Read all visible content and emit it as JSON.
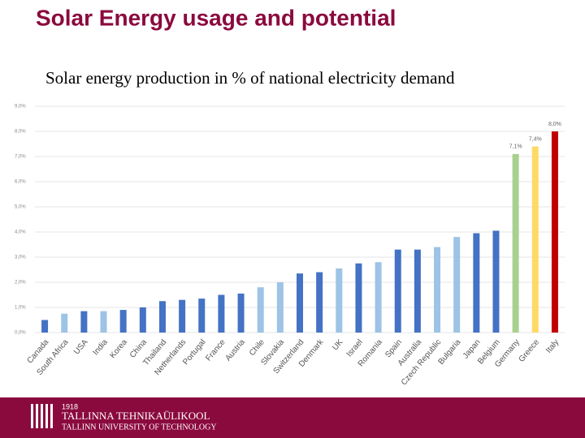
{
  "chart_data": {
    "type": "bar",
    "title": "Solar Energy usage and potential",
    "subtitle": "Solar energy production in % of national electricity demand",
    "categories": [
      "Canada",
      "South Africa",
      "USA",
      "India",
      "Korea",
      "China",
      "Thailand",
      "Netherlands",
      "Portugal",
      "France",
      "Austria",
      "Chile",
      "Slovakia",
      "Switzerland",
      "Denmark",
      "UK",
      "Israel",
      "Romania",
      "Spain",
      "Australia",
      "Czech Republic",
      "Bulgaria",
      "Japan",
      "Belgium",
      "Germany",
      "Greece",
      "Italy"
    ],
    "values": [
      0.5,
      0.75,
      0.85,
      0.85,
      0.9,
      1.0,
      1.25,
      1.3,
      1.35,
      1.5,
      1.55,
      1.8,
      2.0,
      2.35,
      2.4,
      2.55,
      2.75,
      2.8,
      3.3,
      3.3,
      3.4,
      3.8,
      3.95,
      4.05,
      7.1,
      7.4,
      8.0
    ],
    "value_labels": [
      null,
      null,
      null,
      null,
      null,
      null,
      null,
      null,
      null,
      null,
      null,
      null,
      null,
      null,
      null,
      null,
      null,
      null,
      null,
      null,
      null,
      null,
      null,
      null,
      "7,1%",
      "7,4%",
      "8,0%"
    ],
    "colors": [
      "#4472c4",
      "#9dc3e6",
      "#4472c4",
      "#9dc3e6",
      "#4472c4",
      "#4472c4",
      "#4472c4",
      "#4472c4",
      "#4472c4",
      "#4472c4",
      "#4472c4",
      "#9dc3e6",
      "#9dc3e6",
      "#4472c4",
      "#4472c4",
      "#9dc3e6",
      "#4472c4",
      "#9dc3e6",
      "#4472c4",
      "#4472c4",
      "#9dc3e6",
      "#9dc3e6",
      "#4472c4",
      "#4472c4",
      "#a9d18e",
      "#ffd966",
      "#c00000"
    ],
    "ylim": [
      0,
      9
    ],
    "yticks": [
      {
        "value": 0,
        "label": "0,0%"
      },
      {
        "value": 1,
        "label": "1,0%"
      },
      {
        "value": 2,
        "label": "2,0%"
      },
      {
        "value": 3,
        "label": "3,0%"
      },
      {
        "value": 4,
        "label": "4,0%"
      },
      {
        "value": 5,
        "label": "5,0%"
      },
      {
        "value": 6,
        "label": "6,0%"
      },
      {
        "value": 7,
        "label": "7,0%"
      },
      {
        "value": 8,
        "label": "8,0%"
      },
      {
        "value": 9,
        "label": "9,0%"
      }
    ],
    "grid": true
  },
  "footer": {
    "year": "1918",
    "name": "TALLINNA TEHNIKAÜLIKOOL",
    "name_en": "TALLINN UNIVERSITY OF TECHNOLOGY"
  }
}
